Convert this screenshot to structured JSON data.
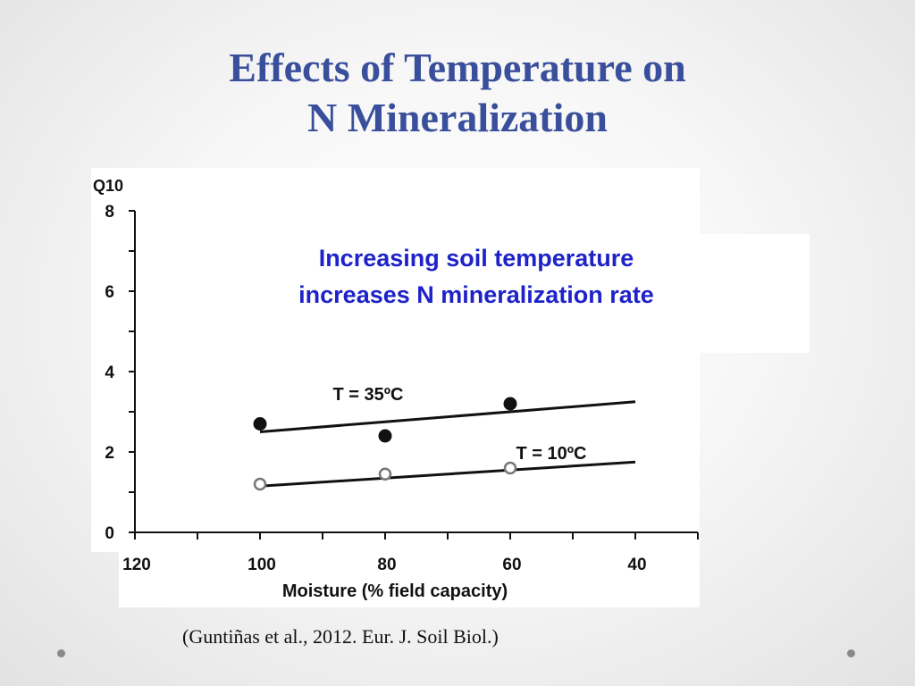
{
  "slide": {
    "title_line1": "Effects of Temperature on",
    "title_line2": "N Mineralization",
    "citation": "(Guntiñas et al., 2012. Eur. J. Soil Biol.)",
    "title_color": "#3a4f9c"
  },
  "chart_data": {
    "type": "scatter",
    "title": "",
    "xlabel": "Moisture (% field capacity)",
    "ylabel": "Q10",
    "x_ticks": [
      120,
      100,
      80,
      60,
      40
    ],
    "y_ticks": [
      0,
      2,
      4,
      6,
      8
    ],
    "xlim": [
      120,
      30
    ],
    "ylim": [
      0,
      8
    ],
    "grid": false,
    "annotation_lines": [
      "Increasing soil temperature",
      "increases N mineralization rate"
    ],
    "annotation_color": "#1f22c8",
    "series": [
      {
        "name": "T = 35ºC",
        "marker": "filled-circle",
        "points": [
          {
            "x": 100,
            "y": 2.7
          },
          {
            "x": 80,
            "y": 2.4
          },
          {
            "x": 60,
            "y": 3.2
          }
        ],
        "trend": {
          "x0": 100,
          "y0": 2.5,
          "x1": 40,
          "y1": 3.25
        }
      },
      {
        "name": "T = 10ºC",
        "marker": "open-circle",
        "points": [
          {
            "x": 100,
            "y": 1.2
          },
          {
            "x": 80,
            "y": 1.45
          },
          {
            "x": 60,
            "y": 1.6
          }
        ],
        "trend": {
          "x0": 100,
          "y0": 1.15,
          "x1": 40,
          "y1": 1.75
        }
      }
    ]
  }
}
